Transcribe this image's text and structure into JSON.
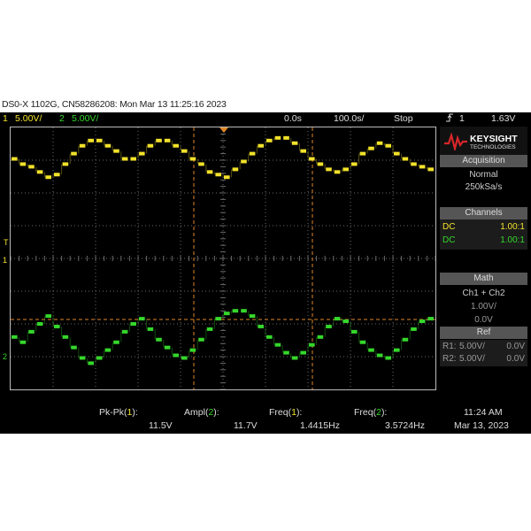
{
  "title_line": "DS0-X 1102G, CN58286208: Mon Mar 13 11:25:16 2023",
  "status": {
    "ch1_num": "1",
    "ch1_scale": "5.00V/",
    "ch2_num": "2",
    "ch2_scale": "5.00V/",
    "time_offset": "0.0s",
    "time_scale": "100.0s/",
    "run_state": "Stop",
    "trig_icon": "trigger-rising-edge-icon",
    "trig_src": "1",
    "trig_level": "1.63V"
  },
  "colors": {
    "ch1": "#f3e22a",
    "ch2": "#35d82b",
    "grid": "#6a6a6a",
    "marker": "#e0862a",
    "brand": "#d8262a"
  },
  "markers": {
    "ch1_t": "T",
    "ch1_gnd": "1",
    "ch2_gnd": "2"
  },
  "panel": {
    "brand": "KEYSIGHT",
    "brand_sub": "TECHNOLOGIES",
    "acq_title": "Acquisition",
    "acq_mode": "Normal",
    "acq_rate": "250kSa/s",
    "channels_title": "Channels",
    "channels": [
      {
        "coupling": "DC",
        "probe": "1.00:1"
      },
      {
        "coupling": "DC",
        "probe": "1.00:1"
      }
    ],
    "math_title": "Math",
    "math_expr": "Ch1 + Ch2",
    "math_scale": "1.00V/",
    "math_offset": "0.0V",
    "ref_title": "Ref",
    "refs": [
      {
        "name": "R1:",
        "scale": "5.00V/",
        "offset": "0.0V"
      },
      {
        "name": "R2:",
        "scale": "5.00V/",
        "offset": "0.0V"
      }
    ]
  },
  "measurements": [
    {
      "label": "Pk-Pk",
      "src": "1",
      "value": "11.5V"
    },
    {
      "label": "Ampl",
      "src": "2",
      "value": "11.7V"
    },
    {
      "label": "Freq",
      "src": "1",
      "value": "1.4415Hz"
    },
    {
      "label": "Freq",
      "src": "2",
      "value": "3.5724Hz"
    }
  ],
  "clock": {
    "time": "11:24 AM",
    "date": "Mar 13, 2023"
  },
  "traces": {
    "ch1": [
      0.88,
      0.86,
      0.85,
      0.83,
      0.81,
      0.82,
      0.86,
      0.9,
      0.93,
      0.95,
      0.95,
      0.93,
      0.91,
      0.88,
      0.88,
      0.9,
      0.93,
      0.95,
      0.95,
      0.93,
      0.91,
      0.88,
      0.86,
      0.83,
      0.82,
      0.81,
      0.84,
      0.87,
      0.9,
      0.93,
      0.95,
      0.96,
      0.96,
      0.94,
      0.91,
      0.88,
      0.86,
      0.84,
      0.83,
      0.84,
      0.86,
      0.9,
      0.92,
      0.94,
      0.93,
      0.9,
      0.88,
      0.86,
      0.85,
      0.84
    ],
    "ch2": [
      0.2,
      0.18,
      0.22,
      0.25,
      0.28,
      0.24,
      0.2,
      0.16,
      0.12,
      0.1,
      0.12,
      0.15,
      0.18,
      0.22,
      0.25,
      0.27,
      0.23,
      0.19,
      0.16,
      0.13,
      0.12,
      0.15,
      0.19,
      0.23,
      0.27,
      0.29,
      0.3,
      0.3,
      0.28,
      0.24,
      0.2,
      0.17,
      0.14,
      0.12,
      0.14,
      0.17,
      0.2,
      0.24,
      0.27,
      0.26,
      0.22,
      0.18,
      0.15,
      0.13,
      0.12,
      0.15,
      0.19,
      0.23,
      0.26,
      0.27
    ]
  }
}
